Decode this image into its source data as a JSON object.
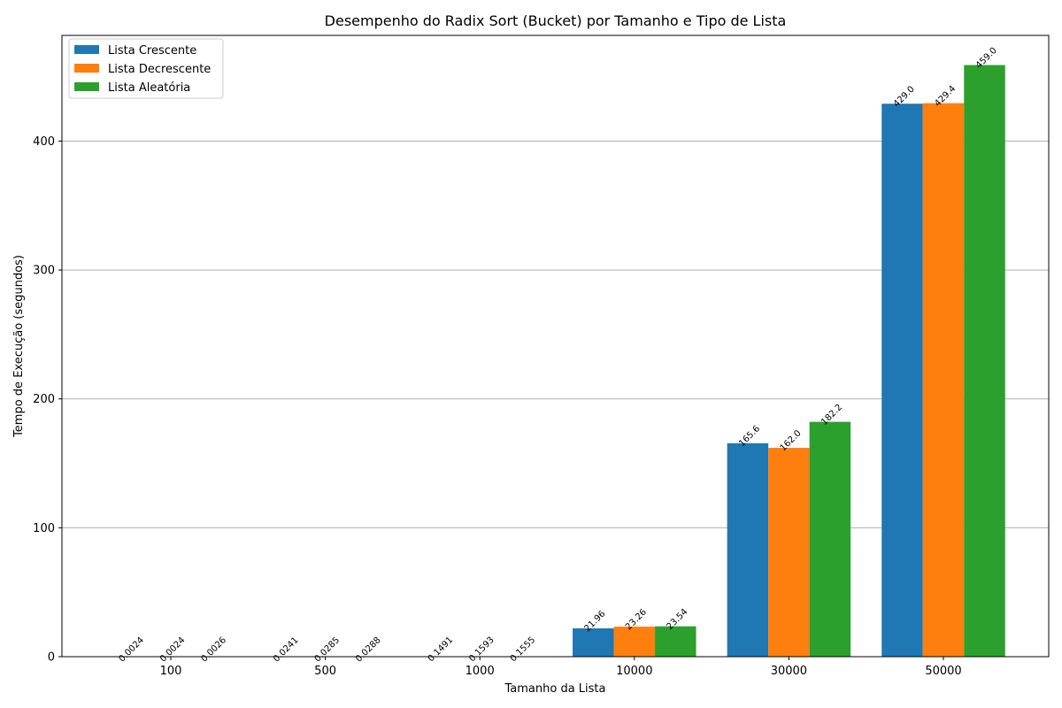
{
  "chart_data": {
    "type": "bar",
    "title": "Desempenho do Radix Sort (Bucket) por Tamanho e Tipo de Lista",
    "xlabel": "Tamanho da Lista",
    "ylabel": "Tempo de Execução (segundos)",
    "categories": [
      "100",
      "500",
      "1000",
      "10000",
      "30000",
      "50000"
    ],
    "ylim": [
      0,
      482
    ],
    "yticks": [
      0,
      100,
      200,
      300,
      400
    ],
    "grid": "horizontal",
    "legend_position": "top-left",
    "series": [
      {
        "name": "Lista Crescente",
        "color": "#1f77b4",
        "values": [
          0.0024,
          0.0241,
          0.1491,
          21.96,
          165.6,
          429.0
        ],
        "labels": [
          "0.0024",
          "0.0241",
          "0.1491",
          "21.96",
          "165.6",
          "429.0"
        ]
      },
      {
        "name": "Lista Decrescente",
        "color": "#ff7f0e",
        "values": [
          0.0024,
          0.0285,
          0.1593,
          23.26,
          162.0,
          429.4
        ],
        "labels": [
          "0.0024",
          "0.0285",
          "0.1593",
          "23.26",
          "162.0",
          "429.4"
        ]
      },
      {
        "name": "Lista Aleatória",
        "color": "#2ca02c",
        "values": [
          0.0026,
          0.0288,
          0.1555,
          23.54,
          182.2,
          459.0
        ],
        "labels": [
          "0.0026",
          "0.0288",
          "0.1555",
          "23.54",
          "182.2",
          "459.0"
        ]
      }
    ]
  }
}
